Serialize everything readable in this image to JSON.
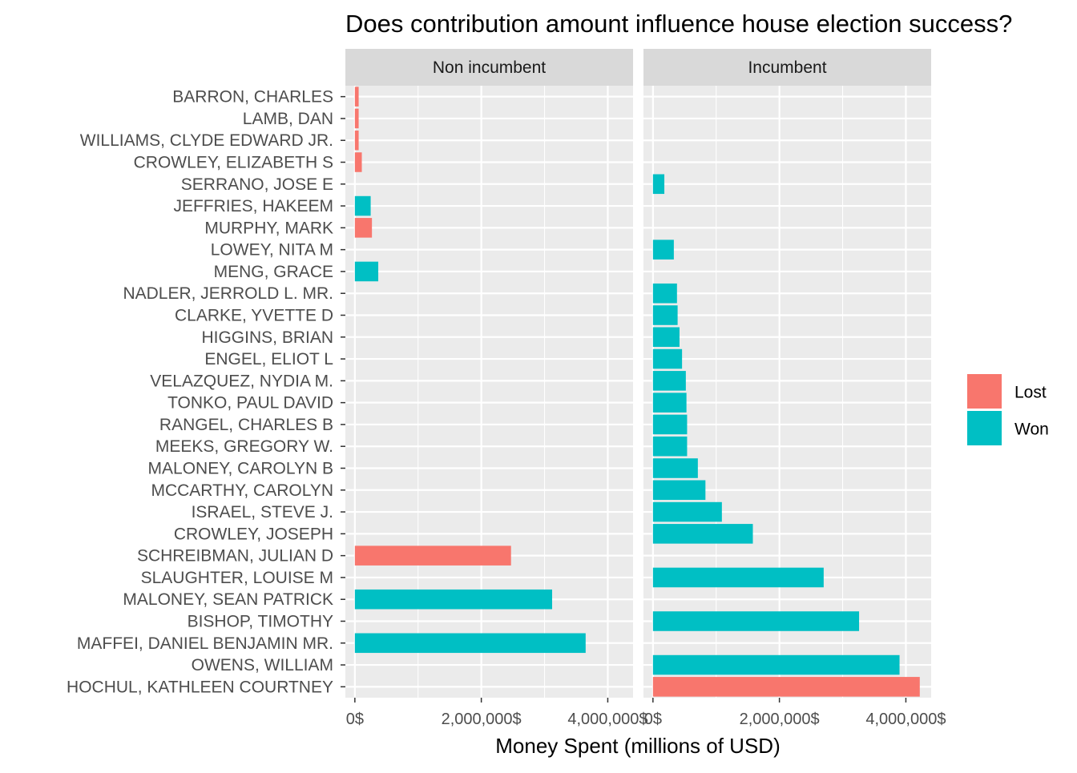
{
  "chart_data": {
    "type": "bar",
    "orientation": "horizontal",
    "title": "Does contribution amount influence house election success?",
    "xlabel": "Money Spent (millions of USD)",
    "ylabel": "",
    "xlim": [
      -150000,
      4400000
    ],
    "x_ticks": [
      0,
      2000000,
      4000000
    ],
    "x_tick_labels": [
      "0$",
      "2,000,000$",
      "4,000,000$"
    ],
    "grid": true,
    "legend": {
      "position": "right",
      "entries": [
        {
          "label": "Lost",
          "color": "#F8766D"
        },
        {
          "label": "Won",
          "color": "#00BFC4"
        }
      ]
    },
    "colors": {
      "Lost": "#F8766D",
      "Won": "#00BFC4"
    },
    "categories": [
      "BARRON, CHARLES",
      "LAMB, DAN",
      "WILLIAMS, CLYDE EDWARD JR.",
      "CROWLEY, ELIZABETH S",
      "SERRANO, JOSE E",
      "JEFFRIES, HAKEEM",
      "MURPHY, MARK",
      "LOWEY, NITA M",
      "MENG, GRACE",
      "NADLER, JERROLD L. MR.",
      "CLARKE, YVETTE D",
      "HIGGINS, BRIAN",
      "ENGEL, ELIOT L",
      "VELAZQUEZ, NYDIA M.",
      "TONKO, PAUL DAVID",
      "RANGEL, CHARLES B",
      "MEEKS, GREGORY W.",
      "MALONEY, CAROLYN B",
      "MCCARTHY, CAROLYN",
      "ISRAEL, STEVE J.",
      "CROWLEY, JOSEPH",
      "SCHREIBMAN, JULIAN D",
      "SLAUGHTER, LOUISE M",
      "MALONEY, SEAN PATRICK",
      "BISHOP, TIMOTHY",
      "MAFFEI, DANIEL BENJAMIN MR.",
      "OWENS, WILLIAM",
      "HOCHUL, KATHLEEN COURTNEY"
    ],
    "panels": [
      {
        "label": "Non incumbent",
        "bars": [
          {
            "candidate": "BARRON, CHARLES",
            "value": 60000,
            "result": "Lost"
          },
          {
            "candidate": "LAMB, DAN",
            "value": 60000,
            "result": "Lost"
          },
          {
            "candidate": "WILLIAMS, CLYDE EDWARD JR.",
            "value": 60000,
            "result": "Lost"
          },
          {
            "candidate": "CROWLEY, ELIZABETH S",
            "value": 110000,
            "result": "Lost"
          },
          {
            "candidate": "JEFFRIES, HAKEEM",
            "value": 250000,
            "result": "Won"
          },
          {
            "candidate": "MURPHY, MARK",
            "value": 270000,
            "result": "Lost"
          },
          {
            "candidate": "MENG, GRACE",
            "value": 370000,
            "result": "Won"
          },
          {
            "candidate": "SCHREIBMAN, JULIAN D",
            "value": 2470000,
            "result": "Lost"
          },
          {
            "candidate": "MALONEY, SEAN PATRICK",
            "value": 3120000,
            "result": "Won"
          },
          {
            "candidate": "MAFFEI, DANIEL BENJAMIN MR.",
            "value": 3650000,
            "result": "Won"
          }
        ]
      },
      {
        "label": "Incumbent",
        "bars": [
          {
            "candidate": "SERRANO, JOSE E",
            "value": 180000,
            "result": "Won"
          },
          {
            "candidate": "LOWEY, NITA M",
            "value": 330000,
            "result": "Won"
          },
          {
            "candidate": "NADLER, JERROLD L. MR.",
            "value": 380000,
            "result": "Won"
          },
          {
            "candidate": "CLARKE, YVETTE D",
            "value": 390000,
            "result": "Won"
          },
          {
            "candidate": "HIGGINS, BRIAN",
            "value": 420000,
            "result": "Won"
          },
          {
            "candidate": "ENGEL, ELIOT L",
            "value": 460000,
            "result": "Won"
          },
          {
            "candidate": "VELAZQUEZ, NYDIA M.",
            "value": 520000,
            "result": "Won"
          },
          {
            "candidate": "TONKO, PAUL DAVID",
            "value": 530000,
            "result": "Won"
          },
          {
            "candidate": "RANGEL, CHARLES B",
            "value": 540000,
            "result": "Won"
          },
          {
            "candidate": "MEEKS, GREGORY W.",
            "value": 540000,
            "result": "Won"
          },
          {
            "candidate": "MALONEY, CAROLYN B",
            "value": 710000,
            "result": "Won"
          },
          {
            "candidate": "MCCARTHY, CAROLYN",
            "value": 830000,
            "result": "Won"
          },
          {
            "candidate": "ISRAEL, STEVE J.",
            "value": 1090000,
            "result": "Won"
          },
          {
            "candidate": "CROWLEY, JOSEPH",
            "value": 1580000,
            "result": "Won"
          },
          {
            "candidate": "SLAUGHTER, LOUISE M",
            "value": 2700000,
            "result": "Won"
          },
          {
            "candidate": "BISHOP, TIMOTHY",
            "value": 3260000,
            "result": "Won"
          },
          {
            "candidate": "OWENS, WILLIAM",
            "value": 3900000,
            "result": "Won"
          },
          {
            "candidate": "HOCHUL, KATHLEEN COURTNEY",
            "value": 4220000,
            "result": "Lost"
          }
        ]
      }
    ]
  }
}
